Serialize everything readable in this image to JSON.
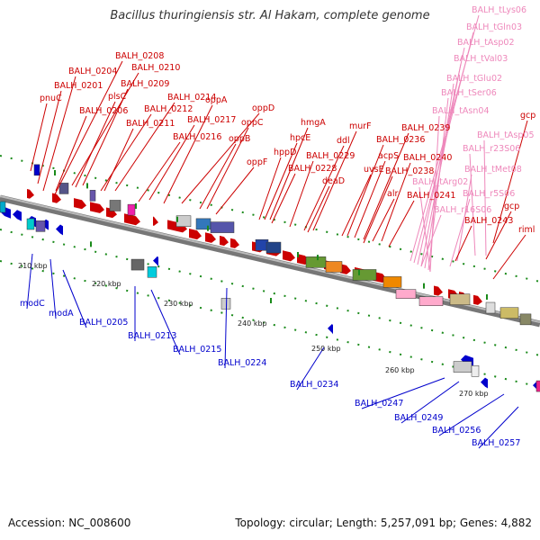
{
  "title": "Bacillus thuringiensis str. Al Hakam, complete genome",
  "footer": {
    "accession": "Accession: NC_008600",
    "topology": "Topology: circular; Length: 5,257,091 bp; Genes: 4,882"
  },
  "colors": {
    "red": "#cc0000",
    "blue": "#0000cc",
    "pink": "#ee88bb"
  },
  "ticks": [
    "210 kbp",
    "220 kbp",
    "230 kbp",
    "240 kbp",
    "250 kbp",
    "260 kbp",
    "270 kbp"
  ],
  "labels_red": [
    "BALH_0208",
    "BALH_0204",
    "BALH_0210",
    "BALH_0201",
    "BALH_0209",
    "pnuC",
    "plsC",
    "BALH_0214",
    "BALH_0206",
    "BALH_0212",
    "oppA",
    "oppD",
    "gcp",
    "BALH_0211",
    "BALH_0217",
    "oppC",
    "hmgA",
    "murF",
    "BALH_0239",
    "BALH_0216",
    "oppB",
    "hpcE",
    "ddl",
    "BALH_0236",
    "oppF",
    "hppD",
    "BALH_0229",
    "acpS",
    "BALH_0240",
    "BALH_0228",
    "uvsE",
    "BALH_0238",
    "deaD",
    "riml",
    "alr",
    "BALH_0241",
    "gcp"
  ],
  "labels_blue": [
    "modC",
    "modA",
    "BALH_0205",
    "BALH_0213",
    "BALH_0215",
    "BALH_0224",
    "BALH_0234",
    "BALH_0247",
    "BALH_0249",
    "BALH_0256",
    "BALH_0257"
  ],
  "labels_pink": [
    "BALH_tLys06",
    "BALH_tGln03",
    "BALH_tAsp02",
    "BALH_tVal03",
    "BALH_tGlu02",
    "BALH_tSer06",
    "BALH_tAsn04",
    "BALH_tAsp05",
    "BALH_r23S06",
    "BALH_tMet08",
    "BALH_tArg02",
    "BALH_r5S06",
    "BALH_r16S06",
    "BALH_0243"
  ]
}
